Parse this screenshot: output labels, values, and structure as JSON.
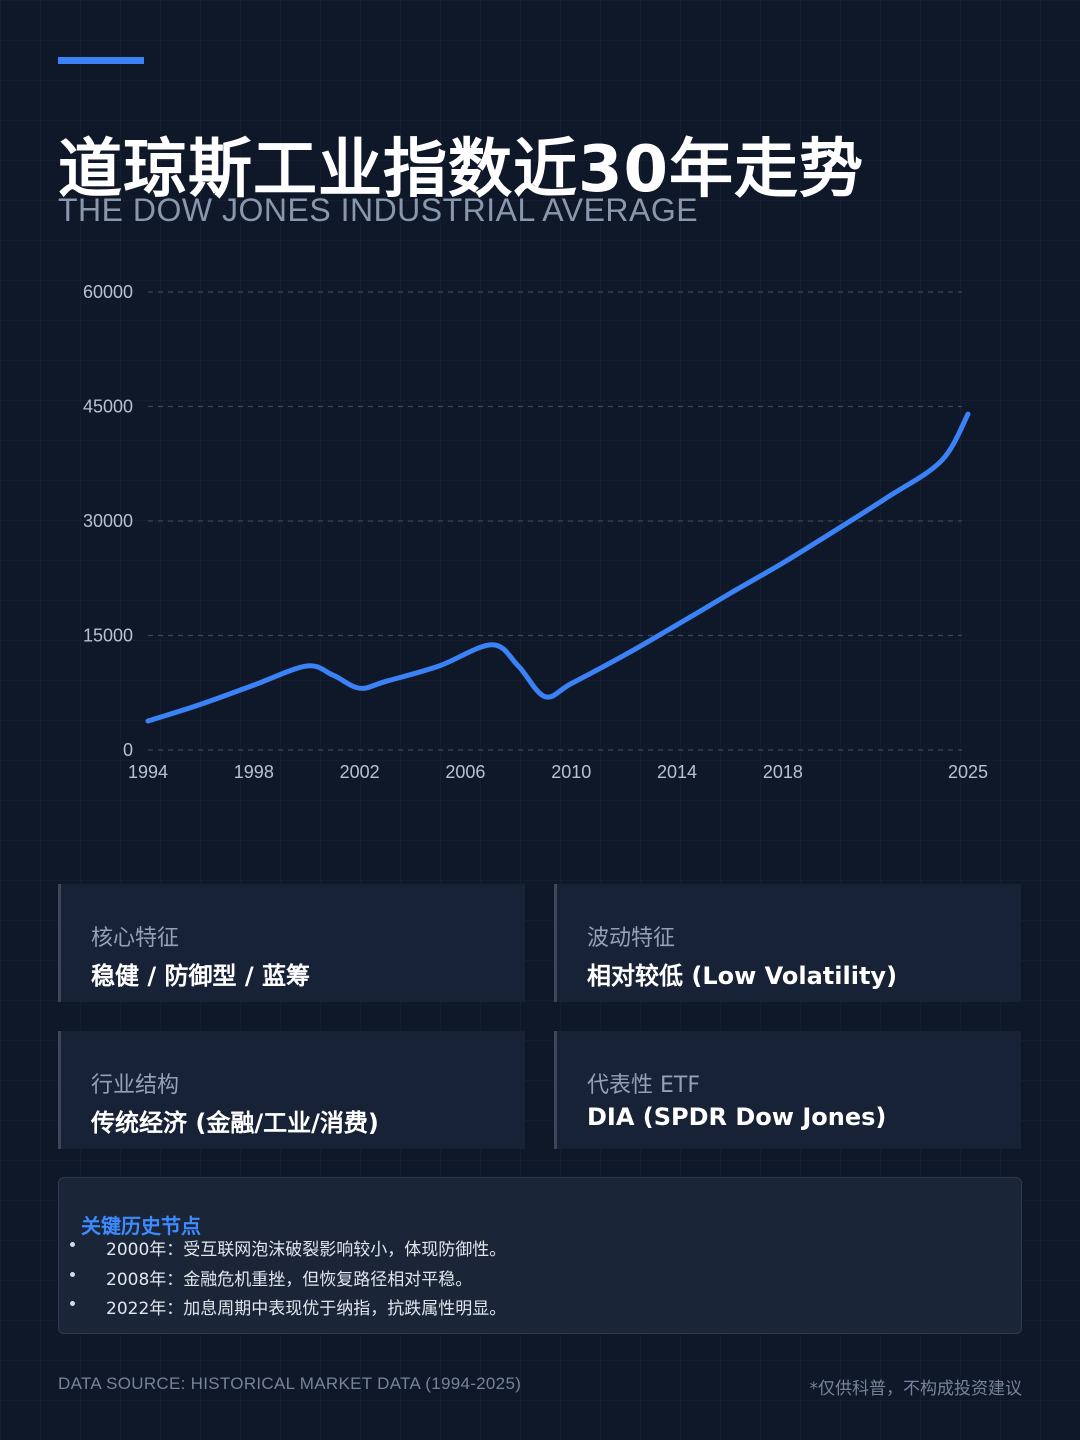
{
  "header": {
    "title": "道琼斯工业指数近30年走势",
    "subtitle": "THE DOW JONES INDUSTRIAL AVERAGE"
  },
  "chart_data": {
    "type": "line",
    "title": "",
    "xlabel": "",
    "ylabel": "",
    "x_ticks": [
      "1994",
      "1998",
      "2002",
      "2006",
      "2010",
      "2014",
      "2018",
      "2025"
    ],
    "y_ticks": [
      0,
      15000,
      30000,
      45000,
      60000
    ],
    "ylim": [
      0,
      60000
    ],
    "xlim": [
      1994,
      2025
    ],
    "grid": true,
    "line_color": "#3b82f6",
    "series": [
      {
        "x": [
          1994,
          1996,
          1998,
          2000,
          2001,
          2002,
          2003,
          2005,
          2007,
          2008,
          2009,
          2010,
          2012,
          2014,
          2016,
          2018,
          2020,
          2022,
          2024,
          2025
        ],
        "values": [
          3800,
          6000,
          8500,
          11000,
          9800,
          8100,
          9000,
          11000,
          13800,
          11000,
          7000,
          8700,
          12400,
          16400,
          20500,
          24500,
          28800,
          33200,
          37900,
          44000
        ]
      }
    ]
  },
  "cards": [
    {
      "label": "核心特征",
      "value": "稳健 / 防御型 / 蓝筹"
    },
    {
      "label": "波动特征",
      "value": "相对较低 (Low Volatility)"
    },
    {
      "label": "行业结构",
      "value": "传统经济 (金融/工业/消费)"
    },
    {
      "label": "代表性 ETF",
      "value": "DIA (SPDR Dow Jones)"
    }
  ],
  "events": {
    "title": "关键历史节点",
    "items": [
      "2000年：受互联网泡沫破裂影响较小，体现防御性。",
      "2008年：金融危机重挫，但恢复路径相对平稳。",
      "2022年：加息周期中表现优于纳指，抗跌属性明显。"
    ]
  },
  "footer": {
    "source": "DATA SOURCE: HISTORICAL MARKET DATA (1994-2025)",
    "disclaimer": "*仅供科普，不构成投资建议"
  }
}
